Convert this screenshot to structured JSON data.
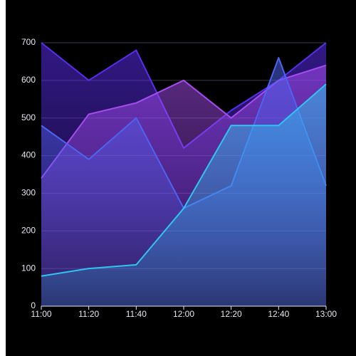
{
  "chart_data": {
    "type": "area",
    "categories": [
      "11:00",
      "11:20",
      "11:40",
      "12:00",
      "12:20",
      "12:40",
      "13:00"
    ],
    "series": [
      {
        "color": "#5a2df0",
        "values": [
          700,
          600,
          680,
          420,
          520,
          600,
          700
        ]
      },
      {
        "color": "#a64cf0",
        "values": [
          340,
          510,
          540,
          600,
          500,
          600,
          640
        ]
      },
      {
        "color": "#4e63f0",
        "values": [
          480,
          390,
          500,
          260,
          320,
          660,
          320
        ]
      },
      {
        "color": "#2ec6f0",
        "values": [
          80,
          100,
          110,
          260,
          480,
          480,
          590
        ]
      }
    ],
    "ylim": [
      0,
      700
    ],
    "yticks": [
      0,
      100,
      200,
      300,
      400,
      500,
      600,
      700
    ],
    "grid": true
  }
}
